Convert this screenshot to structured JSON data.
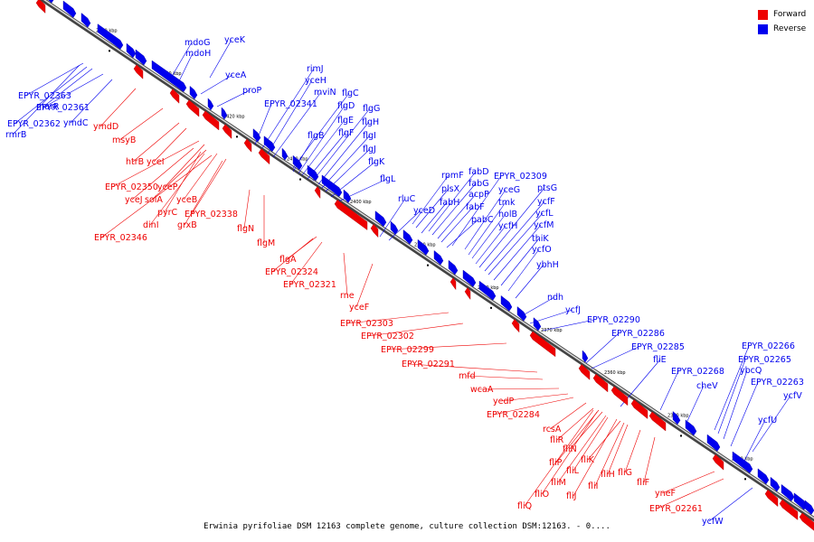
{
  "caption": "Erwinia pyrifoliae DSM 12163 complete genome, culture collection DSM:12163. - 0....",
  "legend": [
    {
      "label": "Forward",
      "color": "#ee0000"
    },
    {
      "label": "Reverse",
      "color": "#0000ee"
    }
  ],
  "colors": {
    "forward": "#ee0000",
    "reverse": "#0000ee",
    "backbone": "#777777"
  },
  "ticks": [
    "2440 kbp",
    "2430 kbp",
    "2420 kbp",
    "2410 kbp",
    "2400 kbp",
    "2390 kbp",
    "2380 kbp",
    "2370 kbp",
    "2360 kbp",
    "2350 kbp",
    "2340 kbp"
  ],
  "reverse_labels": [
    "yceK",
    "mdoG",
    "mdoH",
    "yceA",
    "proP",
    "rimJ",
    "yceH",
    "mviN",
    "flgC",
    "EPYR_02341",
    "flgD",
    "flgG",
    "flgE",
    "flgH",
    "flgF",
    "flgB",
    "flgI",
    "flgJ",
    "flgK",
    "flgL",
    "EPYR_02363",
    "marR",
    "EPYR_02361",
    "EPYR_02362",
    "ymdC",
    "rmrB",
    "rpmF",
    "fabD",
    "plsX",
    "fabG",
    "EPYR_02309",
    "rluC",
    "fabH",
    "acpP",
    "yceG",
    "ptsG",
    "yceD",
    "fabF",
    "tmk",
    "ycfF",
    "holB",
    "ycfL",
    "pabC",
    "ycfH",
    "ycfM",
    "thiK",
    "ycfO",
    "ybhH",
    "ndh",
    "ycfJ",
    "EPYR_02290",
    "EPYR_02286",
    "EPYR_02285",
    "fliE",
    "EPYR_02268",
    "EPYR_02266",
    "EPYR_02265",
    "ybcQ",
    "cheV",
    "EPYR_02263",
    "ycfV",
    "ycfU",
    "ycfW"
  ],
  "forward_labels": [
    "ymdD",
    "msyB",
    "htrB",
    "yceI",
    "EPYR_02350",
    "yceP",
    "yceJ",
    "solA",
    "yceB",
    "pyrC",
    "EPYR_02338",
    "dinI",
    "grxB",
    "EPYR_02346",
    "flgN",
    "flgM",
    "flgA",
    "EPYR_02324",
    "EPYR_02321",
    "rne",
    "yceF",
    "EPYR_02303",
    "EPYR_02302",
    "EPYR_02299",
    "EPYR_02291",
    "mfd",
    "wcaA",
    "yedP",
    "EPYR_02284",
    "rcsA",
    "fliR",
    "fliN",
    "fliP",
    "fliL",
    "fliK",
    "fliM",
    "fliO",
    "fliJ",
    "fliH",
    "fliI",
    "fliG",
    "fliF",
    "fliQ",
    "yneF",
    "EPYR_02261"
  ]
}
